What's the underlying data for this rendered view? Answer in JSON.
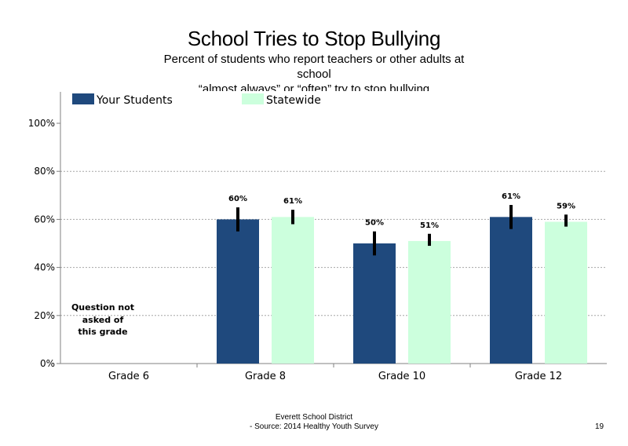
{
  "header": {
    "title": "School Tries to Stop Bullying",
    "subtitle_lines": [
      "Percent of students who report teachers or other adults at",
      "school",
      "“almost always” or “often” try to stop bullying"
    ]
  },
  "chart_data": {
    "type": "bar",
    "categories": [
      "Grade 6",
      "Grade 8",
      "Grade 10",
      "Grade 12"
    ],
    "series": [
      {
        "name": "Your Students",
        "color": "#1f497d",
        "values": [
          null,
          60,
          50,
          61
        ],
        "labels": [
          "",
          "60%",
          "50%",
          "61%"
        ],
        "error_low": [
          null,
          55,
          45,
          56
        ],
        "error_high": [
          null,
          65,
          55,
          66
        ]
      },
      {
        "name": "Statewide",
        "color": "#ccffdd",
        "values": [
          null,
          61,
          51,
          59
        ],
        "labels": [
          "",
          "61%",
          "51%",
          "59%"
        ],
        "error_low": [
          null,
          58,
          49,
          57
        ],
        "error_high": [
          null,
          64,
          54,
          62
        ]
      }
    ],
    "yticks": [
      "0%",
      "20%",
      "40%",
      "60%",
      "80%",
      "100%"
    ],
    "ylim": [
      0,
      100
    ],
    "legend_position": "top-left",
    "grid": true,
    "note": [
      "Question not",
      "asked of",
      "this grade"
    ]
  },
  "footer": {
    "line1": "Everett School District",
    "line2": "- Source: 2014 Healthy  Youth Survey",
    "page_number": "19"
  }
}
